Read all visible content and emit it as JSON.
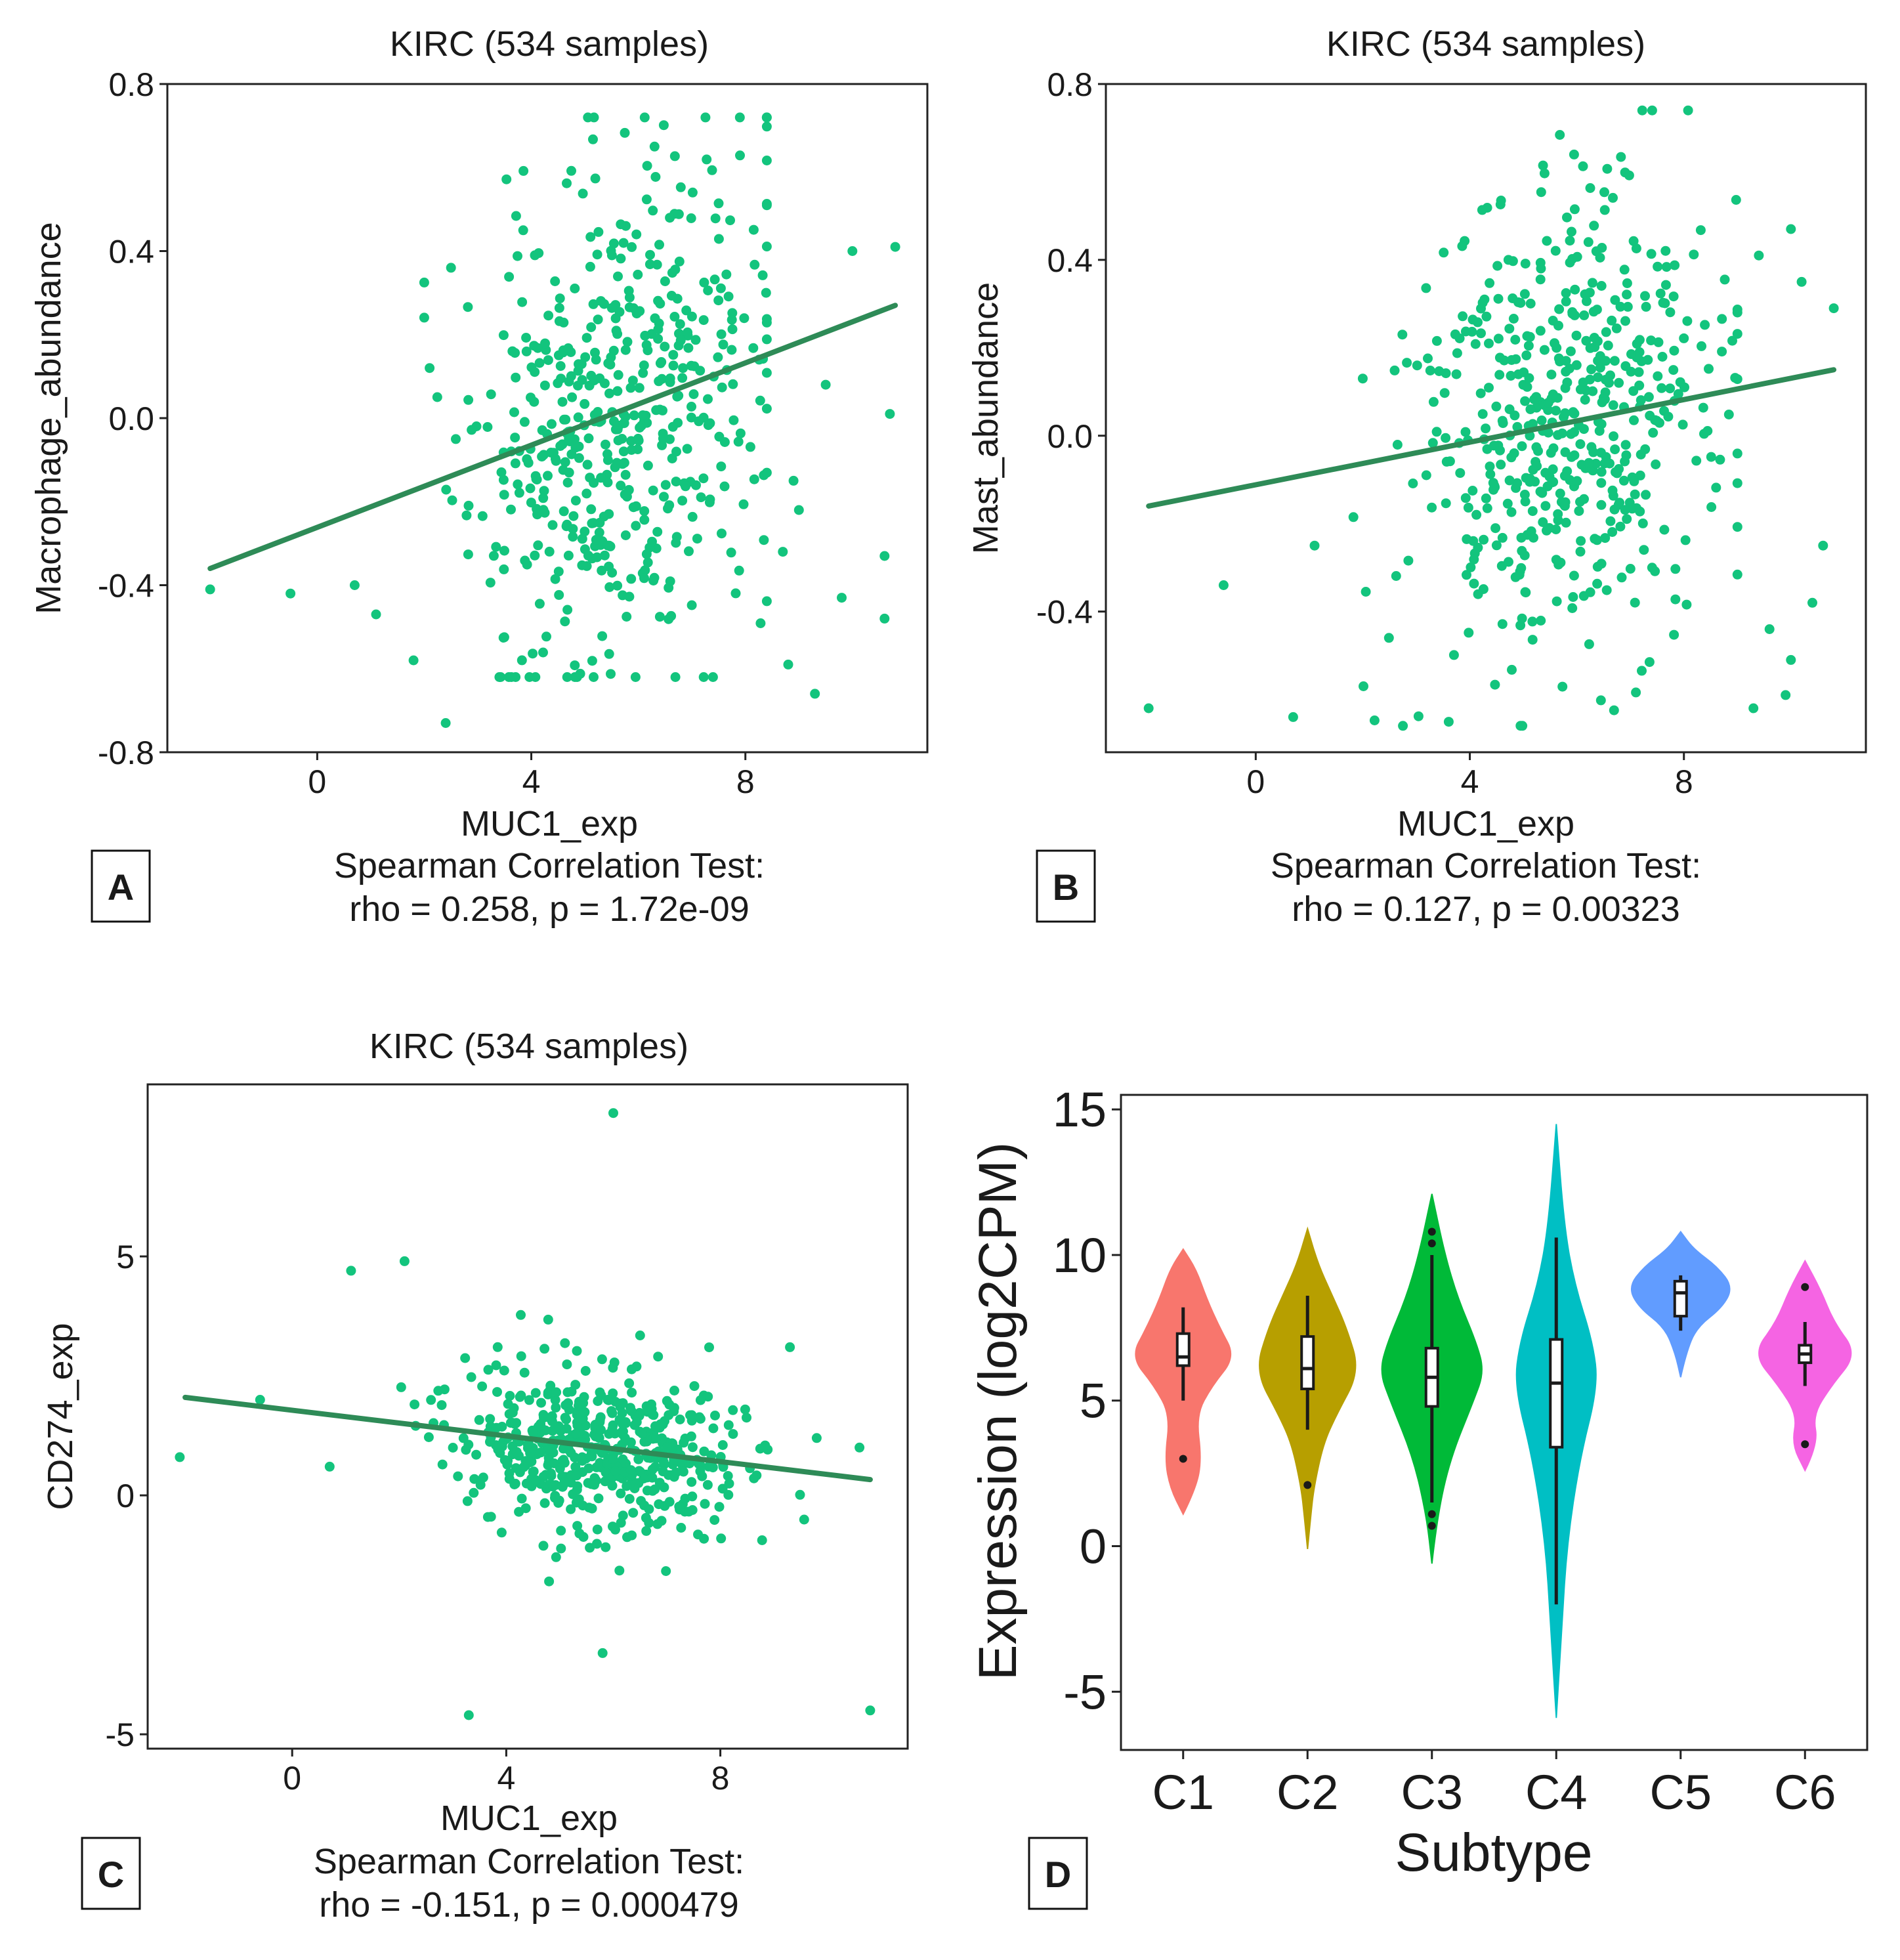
{
  "chart_data": [
    {
      "panel_label": "A",
      "type": "scatter",
      "title": "KIRC (534 samples)",
      "xlabel": "MUC1_exp",
      "ylabel": "Macrophage_abundance",
      "xlim": [
        -2.8,
        11.4
      ],
      "ylim": [
        -0.8,
        0.8
      ],
      "xticks": [
        0,
        4,
        8
      ],
      "yticks": [
        -0.8,
        -0.4,
        0.0,
        0.4,
        0.8
      ],
      "ytick_labels": [
        "-0.8",
        "-0.4",
        "0.0",
        "0.4",
        "0.8"
      ],
      "xtick_labels": [
        "0",
        "4",
        "8"
      ],
      "fit_line": {
        "x": [
          -2.0,
          10.8
        ],
        "y": [
          -0.36,
          0.27
        ]
      },
      "stat_line1": "Spearman Correlation Test:",
      "stat_line2": "rho = 0.258, p = 1.72e-09",
      "rho": 0.258,
      "p": "1.72e-09",
      "n_samples": 534,
      "outliers": [
        [
          -2.0,
          -0.41
        ],
        [
          -0.5,
          -0.42
        ],
        [
          0.7,
          -0.4
        ],
        [
          1.1,
          -0.47
        ],
        [
          1.8,
          -0.58
        ],
        [
          2.1,
          0.12
        ],
        [
          2.4,
          -0.73
        ],
        [
          2.5,
          0.36
        ],
        [
          10.0,
          0.4
        ],
        [
          10.8,
          0.41
        ],
        [
          10.7,
          0.01
        ],
        [
          10.6,
          -0.48
        ],
        [
          10.6,
          -0.33
        ],
        [
          9.8,
          -0.43
        ],
        [
          9.3,
          -0.66
        ],
        [
          9.5,
          0.08
        ],
        [
          8.8,
          -0.59
        ],
        [
          8.7,
          -0.32
        ],
        [
          9.0,
          -0.22
        ],
        [
          8.9,
          -0.15
        ]
      ],
      "cloud": {
        "x_mean": 5.6,
        "x_sd": 1.35,
        "x_min": 2.0,
        "x_max": 8.4,
        "slope": 0.055,
        "intercept": -0.3,
        "noise_sd": 0.3,
        "y_min": -0.62,
        "y_max": 0.72,
        "count": 514,
        "seed": 11
      }
    },
    {
      "panel_label": "B",
      "type": "scatter",
      "title": "KIRC (534 samples)",
      "xlabel": "MUC1_exp",
      "ylabel": "Mast_abundance",
      "xlim": [
        -2.8,
        11.4
      ],
      "ylim": [
        -0.72,
        0.8
      ],
      "xticks": [
        0,
        4,
        8
      ],
      "yticks": [
        -0.4,
        0.0,
        0.4,
        0.8
      ],
      "ytick_labels": [
        "-0.4",
        "0.0",
        "0.4",
        "0.8"
      ],
      "xtick_labels": [
        "0",
        "4",
        "8"
      ],
      "fit_line": {
        "x": [
          -2.0,
          10.8
        ],
        "y": [
          -0.16,
          0.15
        ]
      },
      "stat_line1": "Spearman Correlation Test:",
      "stat_line2": "rho = 0.127, p = 0.00323",
      "rho": 0.127,
      "p": "0.00323",
      "n_samples": 534,
      "outliers": [
        [
          -2.0,
          -0.62
        ],
        [
          -0.6,
          -0.34
        ],
        [
          0.7,
          -0.64
        ],
        [
          1.1,
          -0.25
        ],
        [
          2.0,
          0.13
        ],
        [
          10.8,
          0.29
        ],
        [
          10.0,
          0.47
        ],
        [
          9.4,
          0.41
        ],
        [
          10.2,
          0.35
        ],
        [
          10.4,
          -0.38
        ],
        [
          10.6,
          -0.25
        ],
        [
          10.0,
          -0.51
        ],
        [
          9.9,
          -0.59
        ],
        [
          9.3,
          -0.62
        ],
        [
          9.6,
          -0.44
        ]
      ],
      "cloud": {
        "x_mean": 5.7,
        "x_sd": 1.35,
        "x_min": 1.8,
        "x_max": 9.0,
        "slope": 0.025,
        "intercept": -0.12,
        "noise_sd": 0.26,
        "y_min": -0.66,
        "y_max": 0.74,
        "count": 519,
        "seed": 23
      }
    },
    {
      "panel_label": "C",
      "type": "scatter",
      "title": "KIRC (534 samples)",
      "xlabel": "MUC1_exp",
      "ylabel": "CD274_exp",
      "xlim": [
        -2.7,
        11.5
      ],
      "ylim": [
        -5.3,
        8.6
      ],
      "xticks": [
        0,
        4,
        8
      ],
      "yticks": [
        -5,
        0,
        5
      ],
      "ytick_labels": [
        "-5",
        "0",
        "5"
      ],
      "xtick_labels": [
        "0",
        "4",
        "8"
      ],
      "fit_line": {
        "x": [
          -2.0,
          10.8
        ],
        "y": [
          2.05,
          0.33
        ]
      },
      "stat_line1": "Spearman Correlation Test:",
      "stat_line2": "rho = -0.151, p = 0.000479",
      "rho": -0.151,
      "p": "0.000479",
      "n_samples": 534,
      "outliers": [
        [
          -2.1,
          0.8
        ],
        [
          -0.6,
          2.0
        ],
        [
          0.7,
          0.6
        ],
        [
          1.1,
          4.7
        ],
        [
          2.1,
          4.9
        ],
        [
          3.3,
          -4.6
        ],
        [
          6.0,
          8.0
        ],
        [
          5.8,
          -3.3
        ],
        [
          10.8,
          -4.5
        ],
        [
          9.3,
          3.1
        ],
        [
          10.6,
          1.0
        ],
        [
          9.8,
          1.2
        ],
        [
          4.8,
          -1.8
        ]
      ],
      "cloud": {
        "x_mean": 5.8,
        "x_sd": 1.3,
        "x_min": 1.9,
        "x_max": 9.8,
        "slope": -0.12,
        "intercept": 1.65,
        "noise_sd": 0.85,
        "y_min": -2.5,
        "y_max": 4.2,
        "count": 521,
        "seed": 37
      }
    },
    {
      "panel_label": "D",
      "type": "violin",
      "xlabel": "Subtype",
      "ylabel": "Expression (log2CPM)",
      "ylim": [
        -7,
        15.5
      ],
      "yticks": [
        -5,
        0,
        5,
        10,
        15
      ],
      "ytick_labels": [
        "-5",
        "0",
        "5",
        "10",
        "15"
      ],
      "categories": [
        "C1",
        "C2",
        "C3",
        "C4",
        "C5",
        "C6"
      ],
      "colors": [
        "#f8766d",
        "#b79f00",
        "#00ba38",
        "#00bfc4",
        "#619cff",
        "#f564e3"
      ],
      "violins": [
        {
          "name": "C1",
          "min": 1.1,
          "max": 10.2,
          "q1": 6.2,
          "median": 6.5,
          "q3": 7.3,
          "whisker_low": 5.0,
          "whisker_high": 8.2,
          "outliers": [
            3.0
          ],
          "width_profile": [
            [
              1.1,
              0.0
            ],
            [
              2.0,
              0.25
            ],
            [
              3.0,
              0.35
            ],
            [
              4.5,
              0.25
            ],
            [
              5.5,
              0.55
            ],
            [
              6.5,
              1.0
            ],
            [
              7.5,
              0.7
            ],
            [
              8.5,
              0.45
            ],
            [
              9.5,
              0.25
            ],
            [
              10.2,
              0.0
            ]
          ]
        },
        {
          "name": "C2",
          "min": -0.1,
          "max": 10.9,
          "q1": 5.4,
          "median": 6.1,
          "q3": 7.2,
          "whisker_low": 4.0,
          "whisker_high": 8.6,
          "outliers": [
            2.1
          ],
          "width_profile": [
            [
              -0.1,
              0.0
            ],
            [
              1.0,
              0.06
            ],
            [
              2.0,
              0.12
            ],
            [
              3.5,
              0.3
            ],
            [
              4.5,
              0.55
            ],
            [
              6.0,
              1.0
            ],
            [
              7.5,
              0.75
            ],
            [
              8.7,
              0.45
            ],
            [
              9.7,
              0.2
            ],
            [
              10.9,
              0.0
            ]
          ]
        },
        {
          "name": "C3",
          "min": -0.6,
          "max": 12.1,
          "q1": 4.8,
          "median": 5.8,
          "q3": 6.8,
          "whisker_low": 1.5,
          "whisker_high": 10.0,
          "outliers": [
            0.7,
            1.1,
            10.4,
            10.8
          ],
          "width_profile": [
            [
              -0.6,
              0.0
            ],
            [
              1.0,
              0.1
            ],
            [
              3.0,
              0.35
            ],
            [
              5.0,
              0.8
            ],
            [
              6.0,
              1.0
            ],
            [
              7.0,
              0.85
            ],
            [
              8.5,
              0.5
            ],
            [
              10.0,
              0.25
            ],
            [
              12.1,
              0.0
            ]
          ]
        },
        {
          "name": "C4",
          "min": -5.9,
          "max": 14.5,
          "q1": 3.4,
          "median": 5.6,
          "q3": 7.1,
          "whisker_low": -2.0,
          "whisker_high": 10.6,
          "outliers": [],
          "width_profile": [
            [
              -5.9,
              0.0
            ],
            [
              -3.0,
              0.1
            ],
            [
              0.0,
              0.2
            ],
            [
              3.0,
              0.45
            ],
            [
              5.5,
              0.8
            ],
            [
              7.0,
              0.7
            ],
            [
              9.0,
              0.35
            ],
            [
              11.0,
              0.15
            ],
            [
              14.5,
              0.0
            ]
          ]
        },
        {
          "name": "C5",
          "min": 5.8,
          "max": 10.8,
          "q1": 7.9,
          "median": 8.7,
          "q3": 9.1,
          "whisker_low": 7.4,
          "whisker_high": 9.3,
          "outliers": [],
          "width_profile": [
            [
              5.8,
              0.0
            ],
            [
              6.6,
              0.1
            ],
            [
              7.5,
              0.3
            ],
            [
              8.2,
              0.8
            ],
            [
              8.9,
              1.0
            ],
            [
              9.6,
              0.7
            ],
            [
              10.2,
              0.25
            ],
            [
              10.8,
              0.0
            ]
          ]
        },
        {
          "name": "C6",
          "min": 2.6,
          "max": 9.8,
          "q1": 6.3,
          "median": 6.6,
          "q3": 6.9,
          "whisker_low": 5.5,
          "whisker_high": 7.7,
          "outliers": [
            3.5,
            8.9
          ],
          "width_profile": [
            [
              2.6,
              0.0
            ],
            [
              3.5,
              0.25
            ],
            [
              4.5,
              0.15
            ],
            [
              5.5,
              0.5
            ],
            [
              6.6,
              1.0
            ],
            [
              7.7,
              0.55
            ],
            [
              8.8,
              0.3
            ],
            [
              9.8,
              0.0
            ]
          ]
        }
      ]
    }
  ],
  "style": {
    "point_color": "#13c47d",
    "line_color": "#2e8b57"
  }
}
